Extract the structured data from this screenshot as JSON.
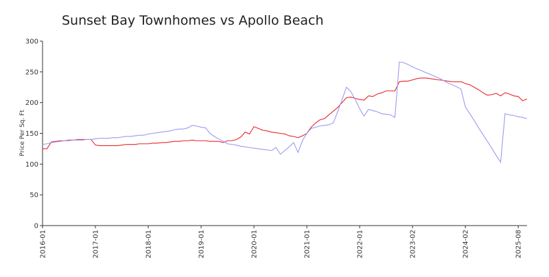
{
  "chart_data": {
    "type": "line",
    "title": "Sunset Bay Townhomes vs Apollo Beach",
    "y_label": "Price Per Sq. Ft",
    "categories": [
      "2016-01",
      null,
      null,
      null,
      null,
      null,
      null,
      null,
      null,
      null,
      null,
      null,
      "2017-01",
      null,
      null,
      null,
      null,
      null,
      null,
      null,
      null,
      null,
      null,
      null,
      "2018-01",
      null,
      null,
      null,
      null,
      null,
      null,
      null,
      null,
      null,
      null,
      null,
      "2019-01",
      null,
      null,
      null,
      null,
      null,
      null,
      null,
      null,
      null,
      null,
      null,
      "2020-01",
      null,
      null,
      null,
      null,
      null,
      null,
      null,
      null,
      null,
      null,
      null,
      "2021-01",
      null,
      null,
      null,
      null,
      null,
      null,
      null,
      null,
      null,
      null,
      null,
      "2022-01",
      null,
      null,
      null,
      null,
      null,
      null,
      null,
      null,
      null,
      null,
      null,
      "2023-02",
      null,
      null,
      null,
      null,
      null,
      null,
      null,
      null,
      null,
      null,
      null,
      "2024-02",
      null,
      null,
      null,
      null,
      null,
      null,
      null,
      null,
      null,
      null,
      null,
      "2025-08",
      null,
      null
    ],
    "series": [
      {
        "color": "#e8262a",
        "values": [
          125,
          125,
          136,
          137,
          138,
          138,
          139,
          139,
          140,
          140,
          140,
          140,
          131,
          130,
          130,
          130,
          130,
          130,
          131,
          132,
          132,
          132,
          133,
          133,
          133,
          134,
          134,
          135,
          135,
          136,
          137,
          137,
          138,
          138,
          139,
          138,
          138,
          138,
          137,
          137,
          137,
          135,
          138,
          138,
          140,
          144,
          152,
          149,
          161,
          158,
          155,
          154,
          152,
          151,
          150,
          149,
          146,
          145,
          143,
          146,
          150,
          160,
          167,
          172,
          174,
          180,
          186,
          192,
          200,
          208,
          209,
          207,
          205,
          204,
          211,
          210,
          214,
          216,
          219,
          219,
          219,
          234,
          235,
          235,
          237,
          239,
          240,
          240,
          239,
          238,
          237,
          236,
          235,
          234,
          234,
          234,
          231,
          229,
          225,
          221,
          216,
          212,
          213,
          215,
          211,
          216,
          214,
          211,
          210,
          203,
          206
        ]
      },
      {
        "color": "#9a9af0",
        "values": [
          132,
          133,
          135,
          136,
          137,
          138,
          138,
          139,
          139,
          139,
          140,
          140,
          141,
          142,
          142,
          142,
          143,
          143,
          144,
          145,
          145,
          146,
          147,
          147,
          149,
          150,
          151,
          152,
          153,
          154,
          156,
          157,
          157,
          159,
          163,
          162,
          160,
          159,
          150,
          145,
          141,
          137,
          133,
          132,
          131,
          129,
          128,
          127,
          126,
          125,
          124,
          123,
          122,
          127,
          116,
          122,
          128,
          135,
          119,
          138,
          150,
          158,
          160,
          162,
          163,
          164,
          167,
          185,
          205,
          225,
          218,
          205,
          190,
          178,
          189,
          187,
          185,
          182,
          181,
          180,
          176,
          266,
          265,
          262,
          258,
          255,
          252,
          249,
          246,
          243,
          240,
          236,
          232,
          229,
          226,
          222,
          193,
          182,
          171,
          159,
          148,
          137,
          126,
          114,
          103,
          182,
          180,
          179,
          177,
          176,
          174
        ]
      }
    ],
    "ylim": [
      0,
      300
    ],
    "yticks": [
      0,
      50,
      100,
      150,
      200,
      250,
      300
    ],
    "grid": false
  }
}
